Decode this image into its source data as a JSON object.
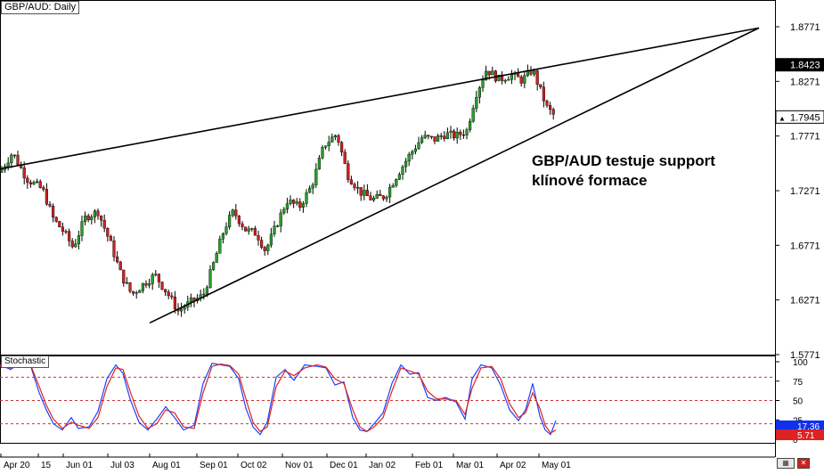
{
  "chart_data": [
    {
      "type": "candlestick",
      "title": "GBP/AUD: Daily",
      "annotation": [
        "GBP/AUD testuje support",
        "klínové formace"
      ],
      "y_ticks": [
        "1.8771",
        "1.8271",
        "1.7771",
        "1.7271",
        "1.6771",
        "1.6271",
        "1.5771"
      ],
      "ylim": [
        1.5771,
        1.8771
      ],
      "price_labels": [
        {
          "value": "1.8423",
          "style": "dark"
        },
        {
          "value": "1.7945",
          "style": "light"
        }
      ],
      "x_ticks": [
        "Apr 20",
        "15",
        "Jun 01",
        "Jul 03",
        "Aug 01",
        "Sep 01",
        "Oct 02",
        "Nov 01",
        "Dec 01",
        "Jan 02",
        "Feb 01",
        "Mar 01",
        "Apr 02",
        "May 01"
      ],
      "series": [
        {
          "waypoints": [
            [
              0,
              1.744
            ],
            [
              14,
              1.762
            ],
            [
              30,
              1.738
            ],
            [
              48,
              1.728
            ],
            [
              60,
              1.701
            ],
            [
              72,
              1.689
            ],
            [
              82,
              1.675
            ],
            [
              96,
              1.703
            ],
            [
              110,
              1.708
            ],
            [
              124,
              1.679
            ],
            [
              136,
              1.65
            ],
            [
              148,
              1.632
            ],
            [
              160,
              1.641
            ],
            [
              174,
              1.65
            ],
            [
              188,
              1.633
            ],
            [
              200,
              1.617
            ],
            [
              214,
              1.625
            ],
            [
              228,
              1.631
            ],
            [
              240,
              1.661
            ],
            [
              252,
              1.693
            ],
            [
              262,
              1.708
            ],
            [
              276,
              1.691
            ],
            [
              288,
              1.688
            ],
            [
              298,
              1.672
            ],
            [
              310,
              1.695
            ],
            [
              322,
              1.718
            ],
            [
              336,
              1.712
            ],
            [
              350,
              1.732
            ],
            [
              364,
              1.769
            ],
            [
              378,
              1.779
            ],
            [
              390,
              1.742
            ],
            [
              404,
              1.726
            ],
            [
              418,
              1.719
            ],
            [
              432,
              1.722
            ],
            [
              446,
              1.742
            ],
            [
              460,
              1.76
            ],
            [
              474,
              1.776
            ],
            [
              488,
              1.774
            ],
            [
              500,
              1.779
            ],
            [
              512,
              1.777
            ],
            [
              524,
              1.782
            ],
            [
              534,
              1.815
            ],
            [
              546,
              1.838
            ],
            [
              560,
              1.829
            ],
            [
              574,
              1.833
            ],
            [
              586,
              1.828
            ],
            [
              598,
              1.838
            ],
            [
              606,
              1.82
            ],
            [
              614,
              1.803
            ],
            [
              624,
              1.794
            ]
          ]
        }
      ],
      "trendlines": [
        {
          "name": "upper",
          "from": [
            0,
            1.747
          ],
          "to": [
            852,
            1.876
          ]
        },
        {
          "name": "lower",
          "from": [
            168,
            1.6061
          ],
          "to": [
            852,
            1.876
          ]
        }
      ]
    },
    {
      "type": "line",
      "title": "Stochastic",
      "y_ticks": [
        "100",
        "75",
        "50",
        "25",
        "0"
      ],
      "ylim": [
        0,
        100
      ],
      "levels": [
        80,
        50,
        20
      ],
      "values": [
        "17.36",
        "5.71"
      ],
      "series": [
        {
          "color": "#2040ff",
          "points": [
            [
              0,
              96
            ],
            [
              12,
              90
            ],
            [
              22,
              98
            ],
            [
              34,
              96
            ],
            [
              44,
              60
            ],
            [
              52,
              38
            ],
            [
              60,
              20
            ],
            [
              70,
              12
            ],
            [
              80,
              28
            ],
            [
              88,
              14
            ],
            [
              100,
              16
            ],
            [
              110,
              36
            ],
            [
              120,
              78
            ],
            [
              130,
              96
            ],
            [
              138,
              85
            ],
            [
              146,
              52
            ],
            [
              156,
              22
            ],
            [
              166,
              12
            ],
            [
              176,
              26
            ],
            [
              186,
              42
            ],
            [
              196,
              28
            ],
            [
              206,
              12
            ],
            [
              218,
              18
            ],
            [
              228,
              72
            ],
            [
              238,
              98
            ],
            [
              248,
              96
            ],
            [
              258,
              94
            ],
            [
              268,
              78
            ],
            [
              276,
              40
            ],
            [
              284,
              16
            ],
            [
              292,
              6
            ],
            [
              300,
              22
            ],
            [
              310,
              80
            ],
            [
              320,
              90
            ],
            [
              330,
              76
            ],
            [
              342,
              96
            ],
            [
              356,
              94
            ],
            [
              366,
              92
            ],
            [
              376,
              70
            ],
            [
              386,
              74
            ],
            [
              396,
              28
            ],
            [
              404,
              12
            ],
            [
              412,
              10
            ],
            [
              420,
              20
            ],
            [
              430,
              34
            ],
            [
              440,
              72
            ],
            [
              450,
              96
            ],
            [
              460,
              84
            ],
            [
              470,
              86
            ],
            [
              480,
              54
            ],
            [
              490,
              50
            ],
            [
              500,
              54
            ],
            [
              512,
              48
            ],
            [
              522,
              26
            ],
            [
              530,
              78
            ],
            [
              540,
              96
            ],
            [
              552,
              92
            ],
            [
              562,
              70
            ],
            [
              572,
              38
            ],
            [
              582,
              24
            ],
            [
              590,
              38
            ],
            [
              598,
              72
            ],
            [
              606,
              30
            ],
            [
              612,
              12
            ],
            [
              618,
              6
            ],
            [
              624,
              24
            ]
          ]
        },
        {
          "color": "#dd2222",
          "points": [
            [
              0,
              94
            ],
            [
              12,
              92
            ],
            [
              22,
              95
            ],
            [
              34,
              97
            ],
            [
              44,
              68
            ],
            [
              52,
              44
            ],
            [
              60,
              26
            ],
            [
              70,
              14
            ],
            [
              80,
              22
            ],
            [
              88,
              18
            ],
            [
              100,
              14
            ],
            [
              110,
              28
            ],
            [
              120,
              68
            ],
            [
              130,
              92
            ],
            [
              138,
              90
            ],
            [
              146,
              62
            ],
            [
              156,
              30
            ],
            [
              166,
              14
            ],
            [
              176,
              20
            ],
            [
              186,
              38
            ],
            [
              196,
              34
            ],
            [
              206,
              16
            ],
            [
              218,
              14
            ],
            [
              228,
              60
            ],
            [
              238,
              94
            ],
            [
              248,
              97
            ],
            [
              258,
              95
            ],
            [
              268,
              84
            ],
            [
              276,
              52
            ],
            [
              284,
              22
            ],
            [
              292,
              10
            ],
            [
              300,
              16
            ],
            [
              310,
              68
            ],
            [
              320,
              88
            ],
            [
              330,
              82
            ],
            [
              342,
              92
            ],
            [
              356,
              96
            ],
            [
              366,
              93
            ],
            [
              376,
              78
            ],
            [
              386,
              72
            ],
            [
              396,
              38
            ],
            [
              404,
              16
            ],
            [
              412,
              10
            ],
            [
              420,
              16
            ],
            [
              430,
              28
            ],
            [
              440,
              62
            ],
            [
              450,
              92
            ],
            [
              460,
              88
            ],
            [
              470,
              84
            ],
            [
              480,
              62
            ],
            [
              490,
              52
            ],
            [
              500,
              52
            ],
            [
              512,
              50
            ],
            [
              522,
              32
            ],
            [
              530,
              66
            ],
            [
              540,
              92
            ],
            [
              552,
              94
            ],
            [
              562,
              78
            ],
            [
              572,
              46
            ],
            [
              582,
              28
            ],
            [
              590,
              34
            ],
            [
              598,
              60
            ],
            [
              606,
              40
            ],
            [
              612,
              18
            ],
            [
              618,
              8
            ],
            [
              624,
              12
            ]
          ]
        }
      ]
    }
  ],
  "colors": {
    "bull": "#2a9d2a",
    "bear": "#cc2222",
    "axis": "#000000",
    "grid_dash": "#cc3333",
    "stoch_blue": "#1030ee",
    "stoch_red": "#dd2222"
  },
  "buttons": {
    "grid_icon": "grid-icon",
    "close_icon": "close-icon"
  }
}
